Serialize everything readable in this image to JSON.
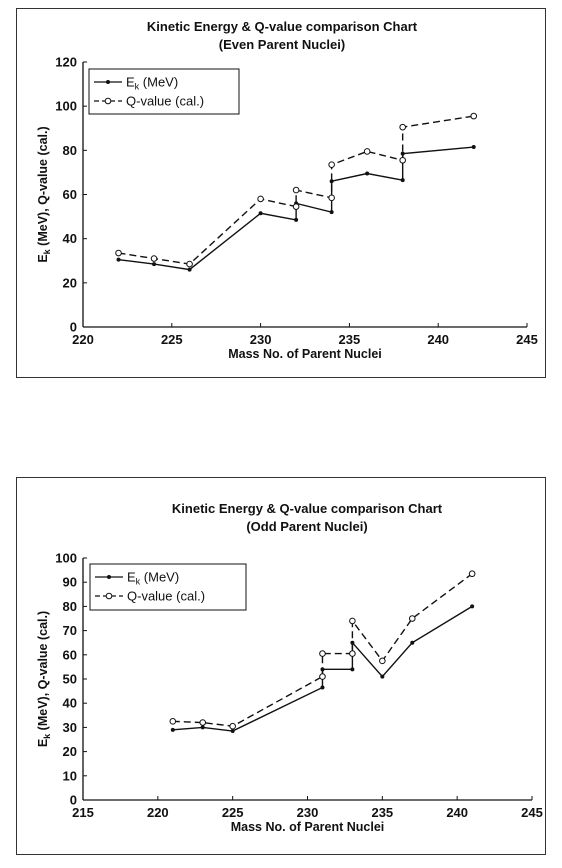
{
  "chart_data": [
    {
      "type": "line",
      "title": "Kinetic Energy & Q-value comparison Chart",
      "subtitle": "(Even Parent Nuclei)",
      "xlabel": "Mass No. of Parent Nuclei",
      "ylabel_main": "E",
      "ylabel_sub": "k",
      "ylabel_rest": " (MeV), Q-value (cal.)",
      "xlim": [
        220,
        245
      ],
      "ylim": [
        0,
        120
      ],
      "xticks": [
        220,
        225,
        230,
        235,
        240,
        245
      ],
      "yticks": [
        0,
        20,
        40,
        60,
        80,
        100,
        120
      ],
      "grid": false,
      "legend_position": "top-left",
      "series": [
        {
          "name": "Ek (MeV)",
          "name_main": "E",
          "name_sub": "k",
          "name_rest": " (MeV)",
          "style": "solid",
          "marker": "filled",
          "x": [
            222,
            224,
            226,
            230,
            232,
            232,
            234,
            234,
            236,
            238,
            238,
            242
          ],
          "y": [
            30.5,
            28.5,
            26,
            51.5,
            48.5,
            56,
            52,
            66,
            69.5,
            66.5,
            78.5,
            81.5
          ]
        },
        {
          "name": "Q-value (cal.)",
          "style": "dashed",
          "marker": "open",
          "x": [
            222,
            224,
            226,
            230,
            232,
            232,
            234,
            234,
            236,
            238,
            238,
            242
          ],
          "y": [
            33.5,
            31,
            28.5,
            58,
            54.5,
            62,
            58.5,
            73.5,
            79.5,
            75.5,
            90.5,
            95.5
          ]
        }
      ]
    },
    {
      "type": "line",
      "title": "Kinetic Energy & Q-value comparison Chart",
      "subtitle": "(Odd Parent Nuclei)",
      "xlabel": "Mass No. of Parent Nuclei",
      "ylabel_main": "E",
      "ylabel_sub": "k",
      "ylabel_rest": " (MeV), Q-value (cal.)",
      "xlim": [
        215,
        245
      ],
      "ylim": [
        0,
        100
      ],
      "xticks": [
        215,
        220,
        225,
        230,
        235,
        240,
        245
      ],
      "yticks": [
        0,
        10,
        20,
        30,
        40,
        50,
        60,
        70,
        80,
        90,
        100
      ],
      "grid": false,
      "legend_position": "top-left",
      "series": [
        {
          "name": "Ek (MeV)",
          "name_main": "E",
          "name_sub": "k",
          "name_rest": " (MeV)",
          "style": "solid",
          "marker": "filled",
          "x": [
            221,
            223,
            225,
            231,
            231,
            233,
            233,
            235,
            237,
            241
          ],
          "y": [
            29,
            30,
            28.5,
            46.5,
            54,
            54,
            65,
            51,
            65,
            80
          ]
        },
        {
          "name": "Q-value (cal.)",
          "style": "dashed",
          "marker": "open",
          "x": [
            221,
            223,
            225,
            231,
            231,
            233,
            233,
            235,
            237,
            241
          ],
          "y": [
            32.5,
            32,
            30.5,
            51,
            60.5,
            60.5,
            74,
            57.5,
            75,
            93.5
          ]
        }
      ]
    }
  ]
}
